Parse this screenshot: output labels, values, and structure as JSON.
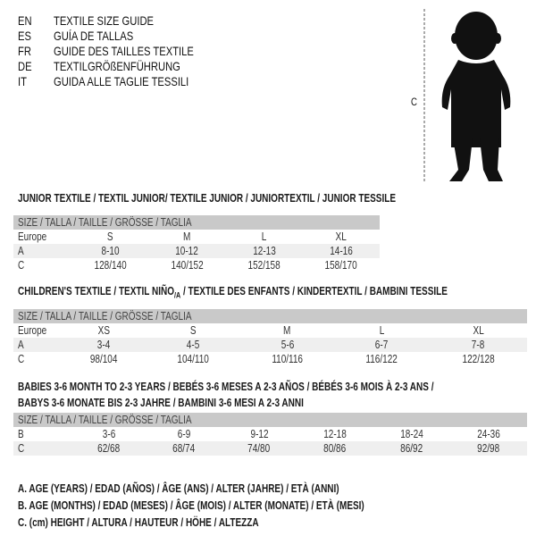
{
  "languages": [
    {
      "code": "EN",
      "text": "TEXTILE SIZE GUIDE"
    },
    {
      "code": "ES",
      "text": "GUÍA DE TALLAS"
    },
    {
      "code": "FR",
      "text": "GUIDE DES TAILLES TEXTILE"
    },
    {
      "code": "DE",
      "text": "TEXTILGRÖßENFÜHRUNG"
    },
    {
      "code": "IT",
      "text": "GUIDA ALLE TAGLIE TESSILI"
    }
  ],
  "figure": {
    "label": "C"
  },
  "junior": {
    "title": "JUNIOR TEXTILE / TEXTIL JUNIOR/ TEXTILE JUNIOR / JUNIORTEXTIL / JUNIOR TESSILE",
    "header": "SIZE / TALLA / TAILLE / GRÖSSE / TAGLIA",
    "rows": [
      {
        "label": "Europe",
        "values": [
          "S",
          "M",
          "L",
          "XL"
        ]
      },
      {
        "label": "A",
        "values": [
          "8-10",
          "10-12",
          "12-13",
          "14-16"
        ]
      },
      {
        "label": "C",
        "values": [
          "128/140",
          "140/152",
          "152/158",
          "158/170"
        ]
      }
    ]
  },
  "children": {
    "title_a": "CHILDREN'S TEXTILE / TEXTIL NIÑO",
    "title_sub": "/A",
    "title_b": " / TEXTILE DES ENFANTS / KINDERTEXTIL / BAMBINI TESSILE",
    "header": "SIZE / TALLA / TAILLE / GRÖSSE / TAGLIA",
    "rows": [
      {
        "label": "Europe",
        "values": [
          "XS",
          "S",
          "M",
          "L",
          "XL"
        ]
      },
      {
        "label": "A",
        "values": [
          "3-4",
          "4-5",
          "5-6",
          "6-7",
          "7-8"
        ]
      },
      {
        "label": "C",
        "values": [
          "98/104",
          "104/110",
          "110/116",
          "116/122",
          "122/128"
        ]
      }
    ]
  },
  "babies": {
    "title_line1": "BABIES 3-6 MONTH TO 2-3 YEARS / BEBÉS 3-6 MESES A 2-3 AÑOS / BÉBÉS 3-6 MOIS À 2-3 ANS /",
    "title_line2": "BABYS 3-6 MONATE BIS 2-3 JAHRE / BAMBINI 3-6 MESI A 2-3 ANNI",
    "header": "SIZE / TALLA / TAILLE / GRÖSSE / TAGLIA",
    "rows": [
      {
        "label": "B",
        "values": [
          "3-6",
          "6-9",
          "9-12",
          "12-18",
          "18-24",
          "24-36"
        ]
      },
      {
        "label": "C",
        "values": [
          "62/68",
          "68/74",
          "74/80",
          "80/86",
          "86/92",
          "92/98"
        ]
      }
    ]
  },
  "legend": [
    "A. AGE (YEARS) / EDAD (AÑOS) / ÂGE (ANS) / ALTER (JAHRE) / ETÀ (ANNI)",
    "B. AGE (MONTHS) / EDAD (MESES) / ÂGE (MOIS) / ALTER (MONATE) / ETÀ (MESI)",
    "C. (cm) HEIGHT / ALTURA / HAUTEUR / HÖHE / ALTEZZA"
  ]
}
